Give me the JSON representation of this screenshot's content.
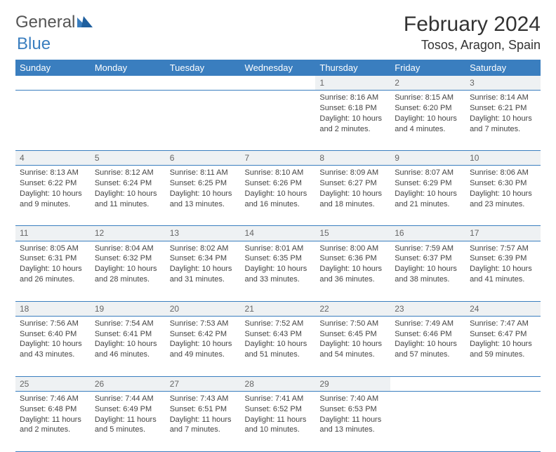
{
  "logo": {
    "part1": "General",
    "part2": "Blue"
  },
  "title": "February 2024",
  "location": "Tosos, Aragon, Spain",
  "colors": {
    "header_bg": "#3a7ebf",
    "header_text": "#ffffff",
    "daynum_bg": "#eef1f3",
    "border": "#3a7ebf",
    "body_text": "#444444"
  },
  "weekdays": [
    "Sunday",
    "Monday",
    "Tuesday",
    "Wednesday",
    "Thursday",
    "Friday",
    "Saturday"
  ],
  "weeks": [
    [
      null,
      null,
      null,
      null,
      {
        "n": "1",
        "sr": "Sunrise: 8:16 AM",
        "ss": "Sunset: 6:18 PM",
        "dl": "Daylight: 10 hours and 2 minutes."
      },
      {
        "n": "2",
        "sr": "Sunrise: 8:15 AM",
        "ss": "Sunset: 6:20 PM",
        "dl": "Daylight: 10 hours and 4 minutes."
      },
      {
        "n": "3",
        "sr": "Sunrise: 8:14 AM",
        "ss": "Sunset: 6:21 PM",
        "dl": "Daylight: 10 hours and 7 minutes."
      }
    ],
    [
      {
        "n": "4",
        "sr": "Sunrise: 8:13 AM",
        "ss": "Sunset: 6:22 PM",
        "dl": "Daylight: 10 hours and 9 minutes."
      },
      {
        "n": "5",
        "sr": "Sunrise: 8:12 AM",
        "ss": "Sunset: 6:24 PM",
        "dl": "Daylight: 10 hours and 11 minutes."
      },
      {
        "n": "6",
        "sr": "Sunrise: 8:11 AM",
        "ss": "Sunset: 6:25 PM",
        "dl": "Daylight: 10 hours and 13 minutes."
      },
      {
        "n": "7",
        "sr": "Sunrise: 8:10 AM",
        "ss": "Sunset: 6:26 PM",
        "dl": "Daylight: 10 hours and 16 minutes."
      },
      {
        "n": "8",
        "sr": "Sunrise: 8:09 AM",
        "ss": "Sunset: 6:27 PM",
        "dl": "Daylight: 10 hours and 18 minutes."
      },
      {
        "n": "9",
        "sr": "Sunrise: 8:07 AM",
        "ss": "Sunset: 6:29 PM",
        "dl": "Daylight: 10 hours and 21 minutes."
      },
      {
        "n": "10",
        "sr": "Sunrise: 8:06 AM",
        "ss": "Sunset: 6:30 PM",
        "dl": "Daylight: 10 hours and 23 minutes."
      }
    ],
    [
      {
        "n": "11",
        "sr": "Sunrise: 8:05 AM",
        "ss": "Sunset: 6:31 PM",
        "dl": "Daylight: 10 hours and 26 minutes."
      },
      {
        "n": "12",
        "sr": "Sunrise: 8:04 AM",
        "ss": "Sunset: 6:32 PM",
        "dl": "Daylight: 10 hours and 28 minutes."
      },
      {
        "n": "13",
        "sr": "Sunrise: 8:02 AM",
        "ss": "Sunset: 6:34 PM",
        "dl": "Daylight: 10 hours and 31 minutes."
      },
      {
        "n": "14",
        "sr": "Sunrise: 8:01 AM",
        "ss": "Sunset: 6:35 PM",
        "dl": "Daylight: 10 hours and 33 minutes."
      },
      {
        "n": "15",
        "sr": "Sunrise: 8:00 AM",
        "ss": "Sunset: 6:36 PM",
        "dl": "Daylight: 10 hours and 36 minutes."
      },
      {
        "n": "16",
        "sr": "Sunrise: 7:59 AM",
        "ss": "Sunset: 6:37 PM",
        "dl": "Daylight: 10 hours and 38 minutes."
      },
      {
        "n": "17",
        "sr": "Sunrise: 7:57 AM",
        "ss": "Sunset: 6:39 PM",
        "dl": "Daylight: 10 hours and 41 minutes."
      }
    ],
    [
      {
        "n": "18",
        "sr": "Sunrise: 7:56 AM",
        "ss": "Sunset: 6:40 PM",
        "dl": "Daylight: 10 hours and 43 minutes."
      },
      {
        "n": "19",
        "sr": "Sunrise: 7:54 AM",
        "ss": "Sunset: 6:41 PM",
        "dl": "Daylight: 10 hours and 46 minutes."
      },
      {
        "n": "20",
        "sr": "Sunrise: 7:53 AM",
        "ss": "Sunset: 6:42 PM",
        "dl": "Daylight: 10 hours and 49 minutes."
      },
      {
        "n": "21",
        "sr": "Sunrise: 7:52 AM",
        "ss": "Sunset: 6:43 PM",
        "dl": "Daylight: 10 hours and 51 minutes."
      },
      {
        "n": "22",
        "sr": "Sunrise: 7:50 AM",
        "ss": "Sunset: 6:45 PM",
        "dl": "Daylight: 10 hours and 54 minutes."
      },
      {
        "n": "23",
        "sr": "Sunrise: 7:49 AM",
        "ss": "Sunset: 6:46 PM",
        "dl": "Daylight: 10 hours and 57 minutes."
      },
      {
        "n": "24",
        "sr": "Sunrise: 7:47 AM",
        "ss": "Sunset: 6:47 PM",
        "dl": "Daylight: 10 hours and 59 minutes."
      }
    ],
    [
      {
        "n": "25",
        "sr": "Sunrise: 7:46 AM",
        "ss": "Sunset: 6:48 PM",
        "dl": "Daylight: 11 hours and 2 minutes."
      },
      {
        "n": "26",
        "sr": "Sunrise: 7:44 AM",
        "ss": "Sunset: 6:49 PM",
        "dl": "Daylight: 11 hours and 5 minutes."
      },
      {
        "n": "27",
        "sr": "Sunrise: 7:43 AM",
        "ss": "Sunset: 6:51 PM",
        "dl": "Daylight: 11 hours and 7 minutes."
      },
      {
        "n": "28",
        "sr": "Sunrise: 7:41 AM",
        "ss": "Sunset: 6:52 PM",
        "dl": "Daylight: 11 hours and 10 minutes."
      },
      {
        "n": "29",
        "sr": "Sunrise: 7:40 AM",
        "ss": "Sunset: 6:53 PM",
        "dl": "Daylight: 11 hours and 13 minutes."
      },
      null,
      null
    ]
  ]
}
